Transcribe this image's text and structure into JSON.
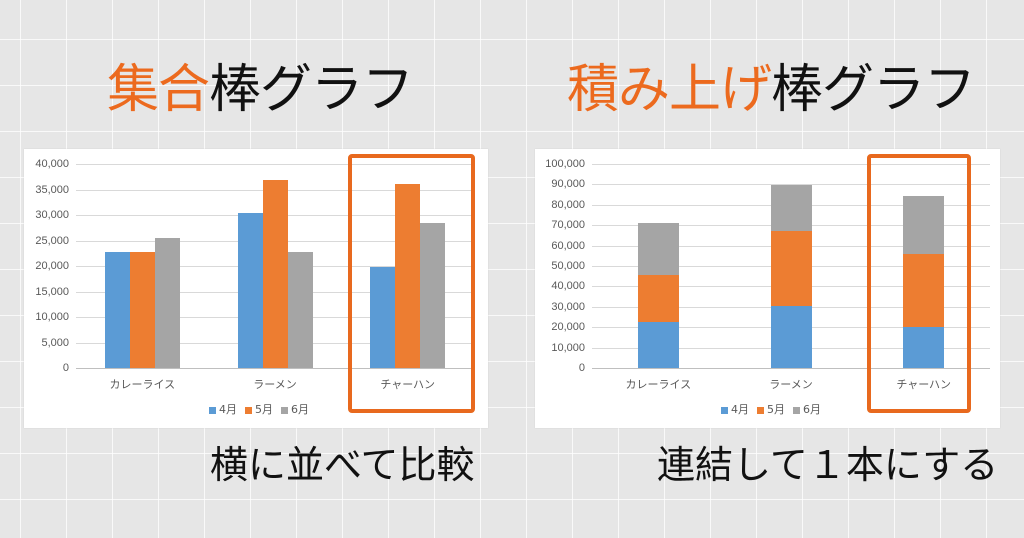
{
  "titles": {
    "left": {
      "accent": "集合",
      "rest": "棒グラフ"
    },
    "right": {
      "accent": "積み上げ",
      "rest": "棒グラフ"
    }
  },
  "captions": {
    "left": "横に並べて比較",
    "right": "連結して１本にする"
  },
  "colors": {
    "apr": "#5b9bd5",
    "may": "#ed7d31",
    "jun": "#a5a5a5",
    "highlight": "#e8691e",
    "title_accent": "#ec6a1e"
  },
  "chart_data": [
    {
      "type": "bar",
      "title": "集合棒グラフ",
      "categories": [
        "カレーライス",
        "ラーメン",
        "チャーハン"
      ],
      "series": [
        {
          "name": "4月",
          "values": [
            22700,
            30300,
            19900
          ]
        },
        {
          "name": "5月",
          "values": [
            22700,
            36900,
            36000
          ]
        },
        {
          "name": "6月",
          "values": [
            25500,
            22700,
            28400
          ]
        }
      ],
      "yticks": [
        "0",
        "5,000",
        "10,000",
        "15,000",
        "20,000",
        "25,000",
        "30,000",
        "35,000",
        "40,000"
      ],
      "ylim": [
        0,
        40000
      ],
      "xlabel": "",
      "ylabel": "",
      "grid": true,
      "legend_position": "bottom",
      "highlighted_category": "チャーハン"
    },
    {
      "type": "bar",
      "stacked": true,
      "title": "積み上げ棒グラフ",
      "categories": [
        "カレーライス",
        "ラーメン",
        "チャーハン"
      ],
      "series": [
        {
          "name": "4月",
          "values": [
            22700,
            30300,
            19900
          ]
        },
        {
          "name": "5月",
          "values": [
            22700,
            36900,
            36000
          ]
        },
        {
          "name": "6月",
          "values": [
            25500,
            22700,
            28400
          ]
        }
      ],
      "yticks": [
        "0",
        "10,000",
        "20,000",
        "30,000",
        "40,000",
        "50,000",
        "60,000",
        "70,000",
        "80,000",
        "90,000",
        "100,000"
      ],
      "ylim": [
        0,
        100000
      ],
      "xlabel": "",
      "ylabel": "",
      "grid": true,
      "legend_position": "bottom",
      "highlighted_category": "チャーハン"
    }
  ]
}
